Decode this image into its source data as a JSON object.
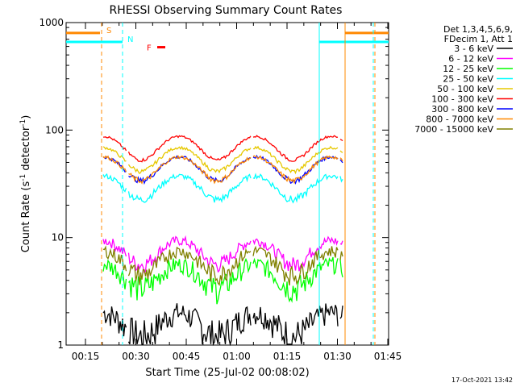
{
  "chart_data": {
    "type": "line",
    "title": "RHESSI Observing Summary Count Rates",
    "xlabel": "Start Time (25-Jul-02 00:08:02)",
    "ylabel_main": "Count Rate (s",
    "ylabel_sup1": "-1",
    "ylabel_mid": " detector",
    "ylabel_sup2": "-1",
    "ylabel_end": ")",
    "xlim": [
      8.03,
      47.3
    ],
    "ylim": [
      1,
      1000
    ],
    "yscale": "log",
    "x_unit": "minutes after 00:00 UT",
    "x_ticks": [
      {
        "value": 15,
        "label": "00:15"
      },
      {
        "value": 30,
        "label": "00:30"
      },
      {
        "value": 45,
        "label": "00:45"
      },
      {
        "value": 60,
        "label": "01:00"
      },
      {
        "value": 75,
        "label": "01:15"
      },
      {
        "value": 90,
        "label": "01:30"
      },
      {
        "value": 105,
        "label": "01:45"
      }
    ],
    "y_ticks": [
      {
        "value": 1,
        "label": "1"
      },
      {
        "value": 10,
        "label": "10"
      },
      {
        "value": 100,
        "label": "100"
      },
      {
        "value": 1000,
        "label": "1000"
      }
    ],
    "legend": {
      "placement": "right",
      "header": [
        "Det 1,3,4,5,6,9,",
        "FDecim 1, Att 1"
      ]
    },
    "series": [
      {
        "name": "3 - 6 keV",
        "color": "#000000",
        "base": 1.6,
        "amp": 0.5
      },
      {
        "name": "6 - 12 keV",
        "color": "#ff00ff",
        "base": 7.5,
        "amp": 1.0
      },
      {
        "name": "12 - 25 keV",
        "color": "#00ff00",
        "base": 4.5,
        "amp": 1.0
      },
      {
        "name": "25 - 50 keV",
        "color": "#00ffff",
        "base": 30,
        "amp": 2
      },
      {
        "name": "50 - 100 keV",
        "color": "#e6c800",
        "base": 55,
        "amp": 2
      },
      {
        "name": "100 - 300 keV",
        "color": "#ff0000",
        "base": 70,
        "amp": 2
      },
      {
        "name": "300 - 800 keV",
        "color": "#0000ff",
        "base": 45,
        "amp": 2
      },
      {
        "name": "800 - 7000 keV",
        "color": "#ff8800",
        "base": 45,
        "amp": 2
      },
      {
        "name": "7000 - 15000 keV",
        "color": "#808000",
        "base": 6,
        "amp": 1.0
      }
    ],
    "events": [
      {
        "label": "S",
        "color": "#ff8800",
        "bar_y": 800,
        "start": 8.03,
        "end": 17,
        "vline": 20.0,
        "vline2": 105.0
      },
      {
        "label": "N",
        "color": "#00ffff",
        "bar_y": 660,
        "start": 8.03,
        "end": 25.5,
        "vline": 26.0,
        "vline2": 104.5
      },
      {
        "label": "F",
        "color": "#ff0000",
        "bar_y": 590,
        "start": 39.5,
        "end": 42.0
      }
    ],
    "footer": "17-Oct-2021 13:42"
  }
}
